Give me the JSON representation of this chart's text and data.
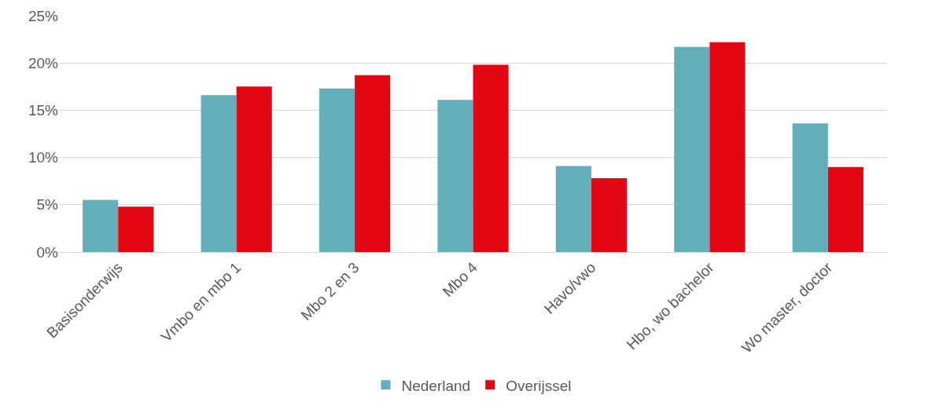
{
  "chart_data": {
    "type": "bar",
    "categories": [
      "Basisonderwijs",
      "Vmbo en mbo 1",
      "Mbo 2 en 3",
      "Mbo 4",
      "Havo/vwo",
      "Hbo, wo bachelor",
      "Wo master, doctor"
    ],
    "series": [
      {
        "name": "Nederland",
        "color": "#62aebb",
        "values": [
          5.5,
          16.6,
          17.3,
          16.1,
          9.1,
          21.7,
          13.6
        ]
      },
      {
        "name": "Overijssel",
        "color": "#e30613",
        "values": [
          4.8,
          17.5,
          18.7,
          19.8,
          7.8,
          22.2,
          9.0
        ]
      }
    ],
    "ylim": [
      0,
      25
    ],
    "yticks": [
      {
        "value": 0,
        "label": "0%"
      },
      {
        "value": 5,
        "label": "5%"
      },
      {
        "value": 10,
        "label": "10%"
      },
      {
        "value": 15,
        "label": "15%"
      },
      {
        "value": 20,
        "label": "20%"
      },
      {
        "value": 25,
        "label": "25%"
      }
    ],
    "grid": "y",
    "legend": "bottom"
  }
}
